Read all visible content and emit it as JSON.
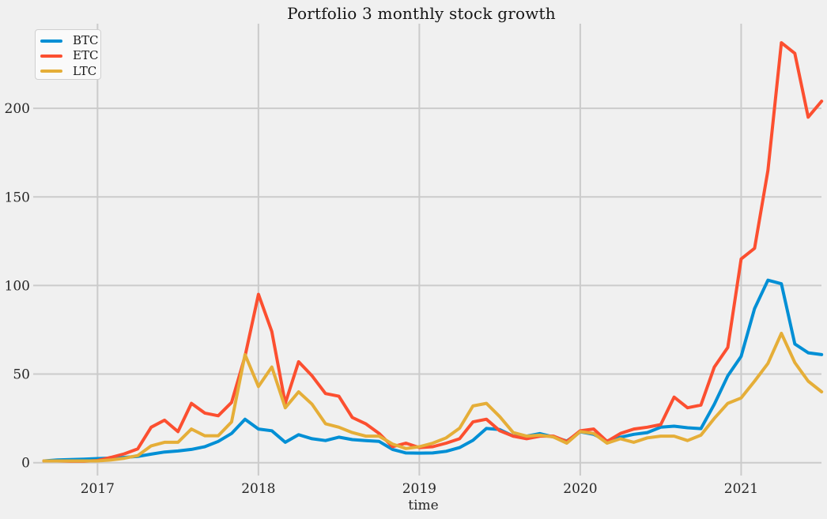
{
  "chart_data": {
    "type": "line",
    "title": "Portfolio 3 monthly stock growth",
    "xlabel": "time",
    "ylabel": "",
    "grid": true,
    "legend_position": "upper left",
    "background_color": "#f0f0f0",
    "grid_color": "#cbcbcb",
    "text_color": "#262626",
    "yticks": [
      0,
      50,
      100,
      150,
      200
    ],
    "ylim": [
      -7,
      246
    ],
    "xticks": [
      {
        "label": "2017",
        "month": "2017-01"
      },
      {
        "label": "2018",
        "month": "2018-01"
      },
      {
        "label": "2019",
        "month": "2019-01"
      },
      {
        "label": "2020",
        "month": "2020-01"
      },
      {
        "label": "2021",
        "month": "2021-01"
      }
    ],
    "x_monthly": [
      "2016-09",
      "2016-10",
      "2016-11",
      "2016-12",
      "2017-01",
      "2017-02",
      "2017-03",
      "2017-04",
      "2017-05",
      "2017-06",
      "2017-07",
      "2017-08",
      "2017-09",
      "2017-10",
      "2017-11",
      "2017-12",
      "2018-01",
      "2018-02",
      "2018-03",
      "2018-04",
      "2018-05",
      "2018-06",
      "2018-07",
      "2018-08",
      "2018-09",
      "2018-10",
      "2018-11",
      "2018-12",
      "2019-01",
      "2019-02",
      "2019-03",
      "2019-04",
      "2019-05",
      "2019-06",
      "2019-07",
      "2019-08",
      "2019-09",
      "2019-10",
      "2019-11",
      "2019-12",
      "2020-01",
      "2020-02",
      "2020-03",
      "2020-04",
      "2020-05",
      "2020-06",
      "2020-07",
      "2020-08",
      "2020-09",
      "2020-10",
      "2020-11",
      "2020-12",
      "2021-01",
      "2021-02",
      "2021-03",
      "2021-04",
      "2021-05",
      "2021-06",
      "2021-07"
    ],
    "series": [
      {
        "name": "BTC",
        "color": "#008fd5",
        "values": [
          1,
          1.5,
          1.8,
          2,
          2.3,
          2.6,
          3,
          3.5,
          4.8,
          6,
          6.6,
          7.5,
          9,
          12,
          16.5,
          24.5,
          19,
          18,
          11.5,
          15.8,
          13.5,
          12.5,
          14.4,
          13,
          12.5,
          12,
          7.5,
          5.5,
          5.4,
          5.5,
          6.4,
          8.5,
          12.6,
          19.3,
          18.7,
          15,
          15,
          16.4,
          14.5,
          12.2,
          17.4,
          16,
          12.2,
          14.4,
          16,
          17,
          20,
          20.6,
          19.7,
          19.2,
          33,
          49,
          60,
          87,
          103,
          101,
          67,
          62,
          61
        ]
      },
      {
        "name": "ETC",
        "color": "#fc4f30",
        "values": [
          1,
          1,
          0.8,
          0.8,
          1.2,
          3,
          5,
          7.8,
          20,
          24,
          17.5,
          33.5,
          28,
          26.5,
          34,
          60,
          95,
          74,
          33.5,
          57,
          49,
          39,
          37.5,
          25.5,
          22,
          16.5,
          9,
          11,
          8.5,
          9,
          11,
          13.5,
          23,
          24.5,
          18,
          15,
          13.5,
          15,
          15,
          12,
          18,
          19,
          12,
          16.5,
          19,
          20,
          21.5,
          37,
          31,
          32.5,
          54,
          65,
          115,
          121,
          165,
          237,
          231,
          195,
          204
        ]
      },
      {
        "name": "LTC",
        "color": "#e5ae38",
        "values": [
          1,
          1,
          1,
          1,
          1,
          1.5,
          2.5,
          4,
          9.5,
          11.5,
          11.5,
          19,
          15.2,
          15.2,
          23,
          61,
          43,
          54,
          31,
          40,
          33,
          22,
          20,
          17,
          15,
          15,
          10.5,
          8,
          9,
          11,
          14,
          19.5,
          32,
          33.5,
          26,
          17,
          15,
          15.5,
          14.5,
          11,
          17.5,
          16.5,
          11,
          13.5,
          11.5,
          14,
          15,
          15,
          12.5,
          15.5,
          25,
          33.5,
          36.5,
          46,
          56,
          73,
          56.5,
          46,
          40
        ]
      }
    ]
  }
}
